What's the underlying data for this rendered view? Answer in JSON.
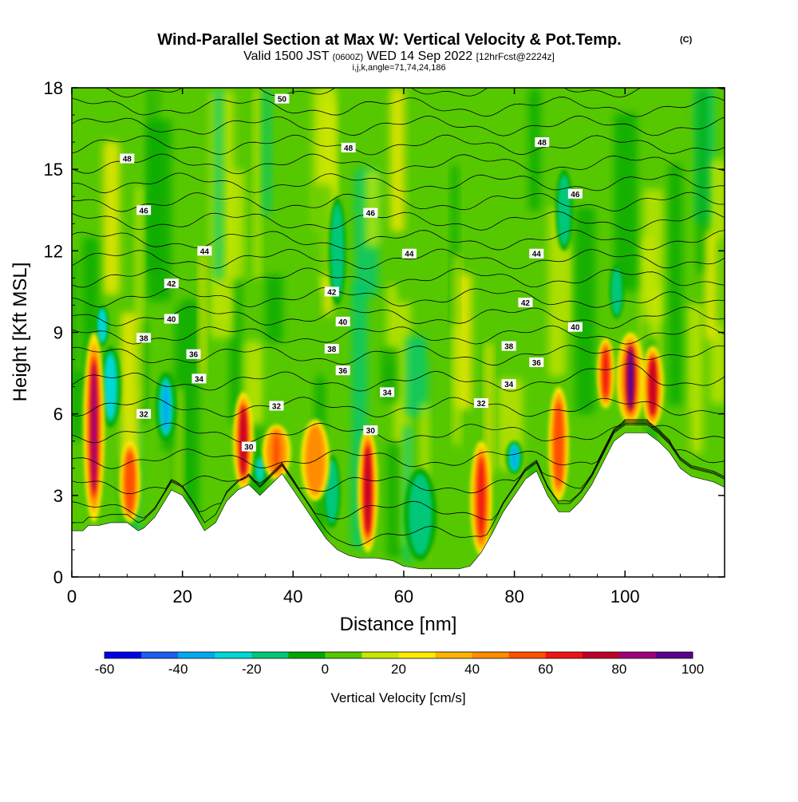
{
  "chart_data": {
    "type": "heatmap",
    "title_main": "Wind-Parallel Section at Max W: Vertical Velocity & Pot.Temp.",
    "title_mark": "(C)",
    "valid_prefix": "Valid 1500 JST",
    "valid_utc": "(0600Z)",
    "valid_date": "WED 14 Sep 2022",
    "valid_fcst": "[12hrFcst@2224z]",
    "indices": "i,j,k,angle=71,74,24,186",
    "xlabel": "Distance [nm]",
    "ylabel": "Height [Kft MSL]",
    "xlim": [
      0,
      118
    ],
    "ylim": [
      0,
      18
    ],
    "x_ticks": [
      "0",
      "20",
      "40",
      "60",
      "80",
      "100"
    ],
    "y_ticks": [
      "0",
      "3",
      "6",
      "9",
      "12",
      "15",
      "18"
    ],
    "colorbar": {
      "label": "Vertical Velocity [cm/s]",
      "ticks": [
        "-60",
        "-40",
        "-20",
        "0",
        "20",
        "40",
        "60",
        "80",
        "100"
      ],
      "range": [
        -60,
        100
      ],
      "colors": [
        "#0000e6",
        "#1e5ef0",
        "#00aaf0",
        "#00d8d8",
        "#00c878",
        "#00a800",
        "#56c800",
        "#c8e600",
        "#ffea00",
        "#ffb400",
        "#ff8c00",
        "#ff5000",
        "#f01414",
        "#c00028",
        "#a00078",
        "#5a0090"
      ]
    },
    "terrain": [
      [
        0,
        1.7
      ],
      [
        2,
        1.7
      ],
      [
        3,
        1.9
      ],
      [
        5,
        1.9
      ],
      [
        7,
        2.0
      ],
      [
        10,
        2.0
      ],
      [
        12,
        1.7
      ],
      [
        13,
        1.8
      ],
      [
        15,
        2.2
      ],
      [
        18,
        3.2
      ],
      [
        20,
        3.0
      ],
      [
        22,
        2.4
      ],
      [
        24,
        1.7
      ],
      [
        26,
        2.0
      ],
      [
        28,
        2.8
      ],
      [
        30,
        3.2
      ],
      [
        32,
        3.4
      ],
      [
        34,
        3.0
      ],
      [
        36,
        3.4
      ],
      [
        38,
        3.8
      ],
      [
        40,
        3.2
      ],
      [
        42,
        2.6
      ],
      [
        44,
        2.0
      ],
      [
        46,
        1.4
      ],
      [
        48,
        1.0
      ],
      [
        50,
        0.8
      ],
      [
        52,
        0.7
      ],
      [
        55,
        0.7
      ],
      [
        58,
        0.6
      ],
      [
        60,
        0.4
      ],
      [
        63,
        0.3
      ],
      [
        66,
        0.3
      ],
      [
        70,
        0.3
      ],
      [
        72,
        0.4
      ],
      [
        74,
        0.9
      ],
      [
        76,
        1.6
      ],
      [
        78,
        2.4
      ],
      [
        80,
        3.0
      ],
      [
        82,
        3.6
      ],
      [
        84,
        3.9
      ],
      [
        86,
        3.0
      ],
      [
        88,
        2.4
      ],
      [
        90,
        2.4
      ],
      [
        92,
        2.8
      ],
      [
        94,
        3.4
      ],
      [
        96,
        4.2
      ],
      [
        98,
        5.0
      ],
      [
        100,
        5.3
      ],
      [
        104,
        5.3
      ],
      [
        106,
        5.0
      ],
      [
        108,
        4.6
      ],
      [
        110,
        4.0
      ],
      [
        112,
        3.7
      ],
      [
        114,
        3.6
      ],
      [
        116,
        3.5
      ],
      [
        118,
        3.3
      ]
    ],
    "theta_levels": [
      29,
      30,
      31,
      32,
      33,
      34,
      35,
      36,
      37,
      38,
      39,
      40,
      41,
      42,
      43,
      44,
      45,
      46,
      47,
      48,
      49,
      50
    ],
    "theta_labels": [
      {
        "text": "50",
        "x": 38,
        "y": 17.6
      },
      {
        "text": "48",
        "x": 10,
        "y": 15.4
      },
      {
        "text": "48",
        "x": 50,
        "y": 15.8
      },
      {
        "text": "48",
        "x": 85,
        "y": 16.0
      },
      {
        "text": "46",
        "x": 13,
        "y": 13.5
      },
      {
        "text": "46",
        "x": 54,
        "y": 13.4
      },
      {
        "text": "46",
        "x": 91,
        "y": 14.1
      },
      {
        "text": "44",
        "x": 24,
        "y": 12.0
      },
      {
        "text": "44",
        "x": 61,
        "y": 11.9
      },
      {
        "text": "44",
        "x": 84,
        "y": 11.9
      },
      {
        "text": "42",
        "x": 18,
        "y": 10.8
      },
      {
        "text": "42",
        "x": 47,
        "y": 10.5
      },
      {
        "text": "42",
        "x": 82,
        "y": 10.1
      },
      {
        "text": "40",
        "x": 18,
        "y": 9.5
      },
      {
        "text": "40",
        "x": 49,
        "y": 9.4
      },
      {
        "text": "40",
        "x": 91,
        "y": 9.2
      },
      {
        "text": "38",
        "x": 13,
        "y": 8.8
      },
      {
        "text": "38",
        "x": 47,
        "y": 8.4
      },
      {
        "text": "38",
        "x": 79,
        "y": 8.5
      },
      {
        "text": "36",
        "x": 22,
        "y": 8.2
      },
      {
        "text": "36",
        "x": 49,
        "y": 7.6
      },
      {
        "text": "36",
        "x": 84,
        "y": 7.9
      },
      {
        "text": "34",
        "x": 23,
        "y": 7.3
      },
      {
        "text": "34",
        "x": 57,
        "y": 6.8
      },
      {
        "text": "34",
        "x": 79,
        "y": 7.1
      },
      {
        "text": "32",
        "x": 13,
        "y": 6.0
      },
      {
        "text": "32",
        "x": 37,
        "y": 6.3
      },
      {
        "text": "32",
        "x": 74,
        "y": 6.4
      },
      {
        "text": "30",
        "x": 32,
        "y": 4.8
      },
      {
        "text": "30",
        "x": 54,
        "y": 5.4
      }
    ],
    "updrafts": [
      {
        "x": 4,
        "ytop": 9.0,
        "ybot": 2.0,
        "w": 2.5,
        "v": 85
      },
      {
        "x": 10.5,
        "ytop": 5.0,
        "ybot": 2.0,
        "w": 2.5,
        "v": 55
      },
      {
        "x": 31,
        "ytop": 6.8,
        "ybot": 3.2,
        "w": 2.4,
        "v": 75
      },
      {
        "x": 37,
        "ytop": 5.6,
        "ybot": 3.6,
        "w": 3.5,
        "v": 50
      },
      {
        "x": 44,
        "ytop": 5.8,
        "ybot": 2.8,
        "w": 3.5,
        "v": 45
      },
      {
        "x": 53.5,
        "ytop": 5.5,
        "ybot": 0.9,
        "w": 2.4,
        "v": 75
      },
      {
        "x": 74,
        "ytop": 5.0,
        "ybot": 0.8,
        "w": 2.6,
        "v": 65
      },
      {
        "x": 88,
        "ytop": 7.0,
        "ybot": 2.8,
        "w": 2.4,
        "v": 55
      },
      {
        "x": 96.5,
        "ytop": 8.8,
        "ybot": 6.2,
        "w": 2.0,
        "v": 60
      },
      {
        "x": 101,
        "ytop": 9.0,
        "ybot": 5.6,
        "w": 3.4,
        "v": 90
      },
      {
        "x": 105,
        "ytop": 8.5,
        "ybot": 5.5,
        "w": 2.6,
        "v": 75
      }
    ],
    "downdrafts": [
      {
        "x": 7,
        "ytop": 8.5,
        "ybot": 5.5,
        "w": 2.5,
        "v": -30
      },
      {
        "x": 5.5,
        "ytop": 10,
        "ybot": 8.5,
        "w": 1.5,
        "v": -30
      },
      {
        "x": 17,
        "ytop": 7.5,
        "ybot": 5.0,
        "w": 2.5,
        "v": -40
      },
      {
        "x": 34,
        "ytop": 4.5,
        "ybot": 3.4,
        "w": 1.5,
        "v": -25
      },
      {
        "x": 47,
        "ytop": 4.5,
        "ybot": 1.8,
        "w": 2.0,
        "v": -20
      },
      {
        "x": 63,
        "ytop": 4.0,
        "ybot": 0.6,
        "w": 4.0,
        "v": -20
      },
      {
        "x": 80,
        "ytop": 5.0,
        "ybot": 3.8,
        "w": 2.0,
        "v": -35
      },
      {
        "x": 98.5,
        "ytop": 11.5,
        "ybot": 9.5,
        "w": 1.6,
        "v": -20
      },
      {
        "x": 48,
        "ytop": 14,
        "ybot": 10,
        "w": 2.0,
        "v": -15
      },
      {
        "x": 89,
        "ytop": 15,
        "ybot": 12,
        "w": 2.0,
        "v": -12
      }
    ]
  }
}
